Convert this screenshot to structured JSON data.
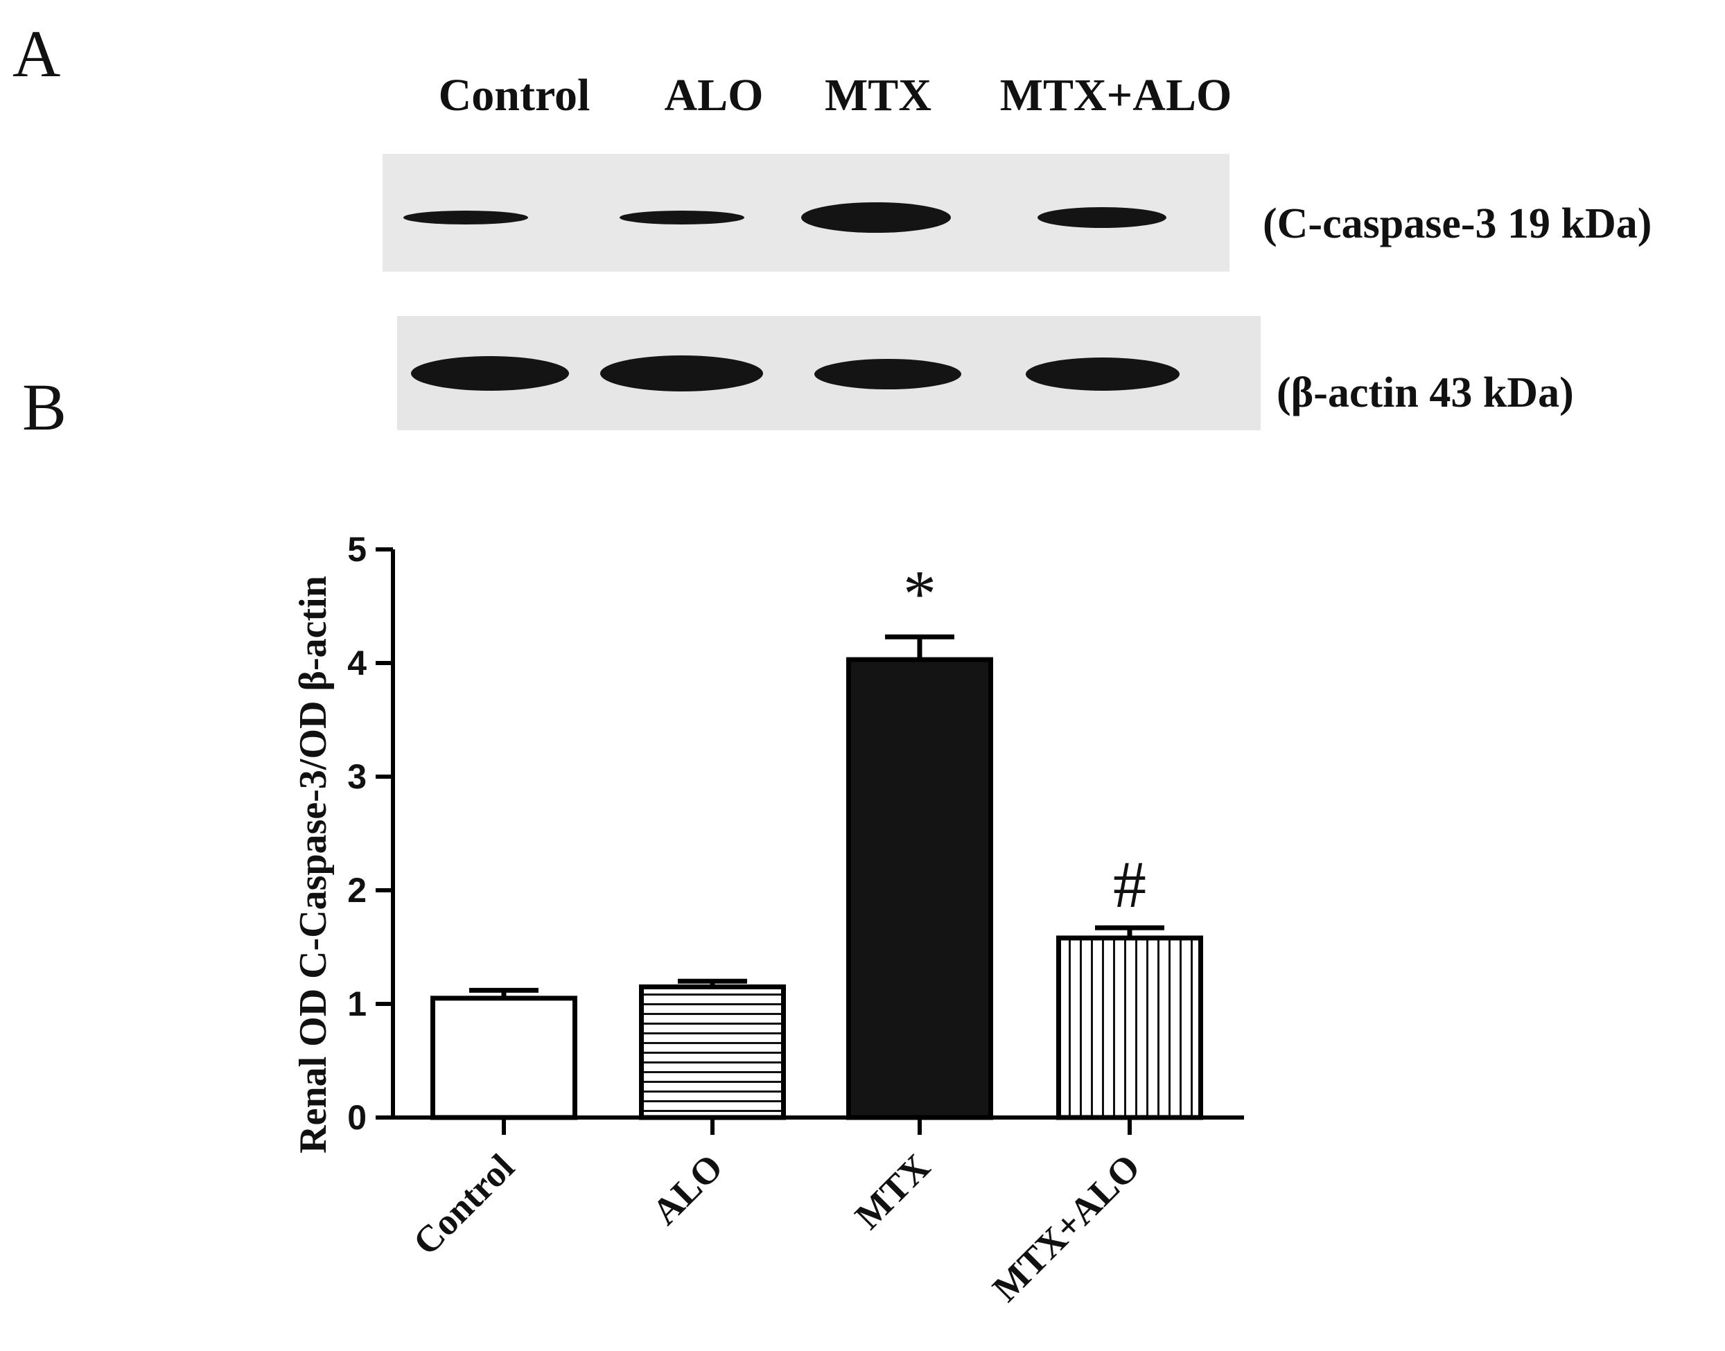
{
  "panels": {
    "a": "A",
    "b": "B"
  },
  "blot": {
    "lanes": [
      "Control",
      "ALO",
      "MTX",
      "MTX+ALO"
    ],
    "rows": [
      {
        "label": "(C-caspase-3 19 kDa)",
        "intensity": [
          0.55,
          0.55,
          1.0,
          0.7
        ]
      },
      {
        "label": "(β-actin 43 kDa)",
        "intensity": [
          1.0,
          1.0,
          0.85,
          0.95
        ]
      }
    ]
  },
  "chart_data": {
    "type": "bar",
    "categories": [
      "Control",
      "ALO",
      "MTX",
      "MTX+ALO"
    ],
    "values": [
      1.05,
      1.15,
      4.03,
      1.58
    ],
    "errors": [
      0.07,
      0.05,
      0.2,
      0.09
    ],
    "patterns": [
      "white",
      "horizontal-lines",
      "solid-black",
      "vertical-lines"
    ],
    "annotations": [
      "",
      "",
      "*",
      "#"
    ],
    "title": "",
    "xlabel": "",
    "ylabel": "Renal OD C-Caspase-3/OD β-actin",
    "ylim": [
      0,
      5
    ],
    "yticks": [
      "0",
      "1",
      "2",
      "3",
      "4",
      "5"
    ],
    "grid": false,
    "colors": {
      "bar_edge": "#000000",
      "bar_solid": "#141414",
      "fill": "#ffffff"
    }
  }
}
